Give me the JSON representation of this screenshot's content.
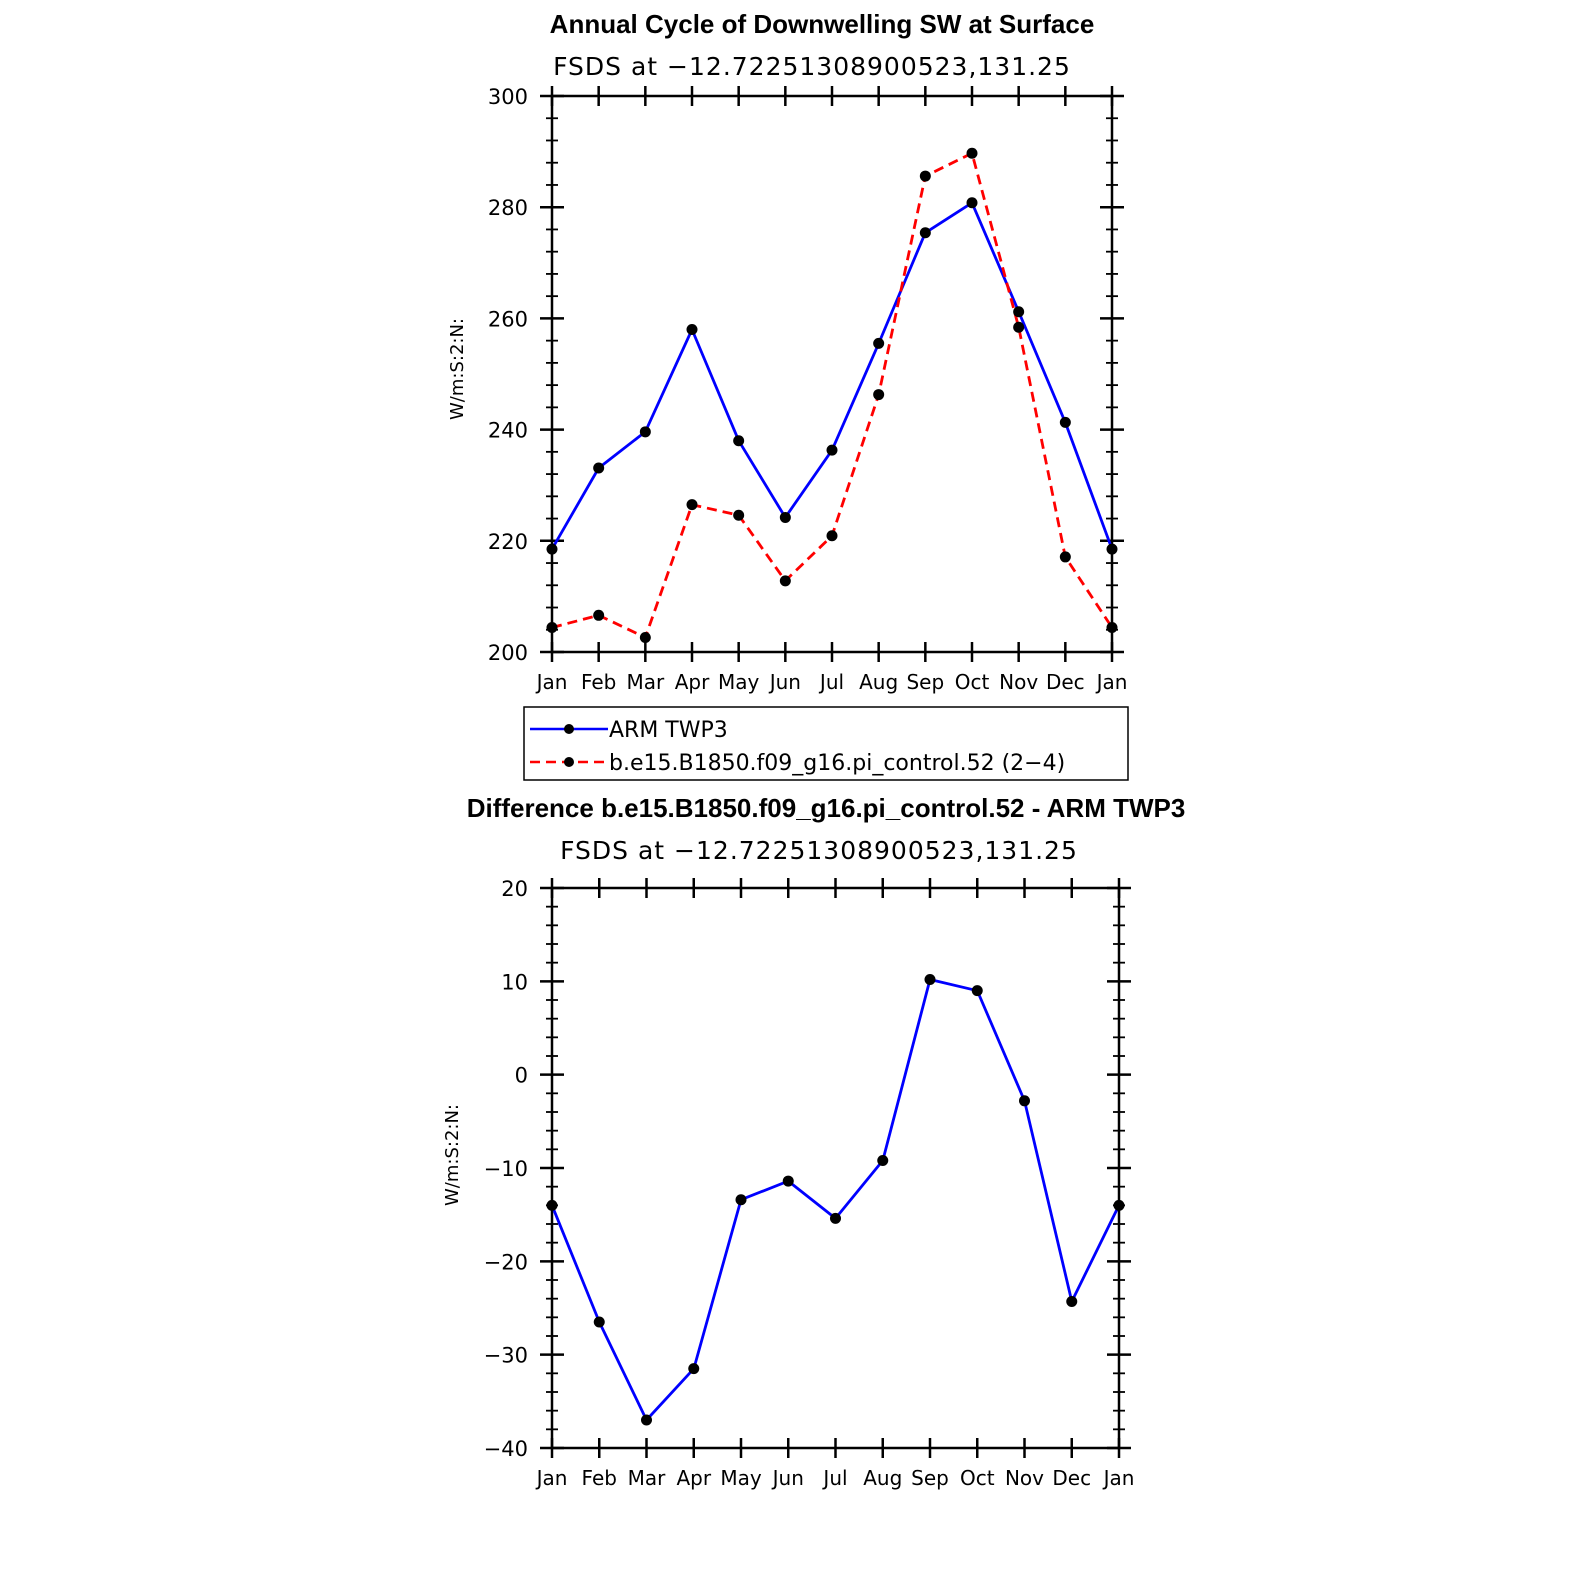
{
  "chart_data": [
    {
      "type": "line",
      "title": "Annual Cycle of Downwelling SW at Surface",
      "subtitle": "FSDS at −12.72251308900523,131.25",
      "ylabel": "W/m:S:2:N:",
      "xlabel": "",
      "ylim": [
        200,
        300
      ],
      "yticks": [
        "200",
        "220",
        "240",
        "260",
        "280",
        "300"
      ],
      "categories": [
        "Jan",
        "Feb",
        "Mar",
        "Apr",
        "May",
        "Jun",
        "Jul",
        "Aug",
        "Sep",
        "Oct",
        "Nov",
        "Dec",
        "Jan"
      ],
      "grid": false,
      "legend_position": "bottom",
      "series": [
        {
          "name": "ARM TWP3",
          "color": "#0000ff",
          "dash": "solid",
          "values": [
            218.5,
            233.1,
            239.6,
            258.0,
            238.0,
            224.2,
            236.3,
            255.5,
            275.4,
            280.8,
            261.2,
            241.3,
            218.5
          ]
        },
        {
          "name": "b.e15.B1850.f09_g16.pi_control.52 (2−4)",
          "color": "#ff0000",
          "dash": "dashed",
          "values": [
            204.4,
            206.6,
            202.6,
            226.5,
            224.6,
            212.8,
            220.9,
            246.3,
            285.6,
            289.7,
            258.4,
            217.1,
            204.4
          ]
        }
      ]
    },
    {
      "type": "line",
      "title": "Difference b.e15.B1850.f09_g16.pi_control.52 - ARM TWP3",
      "subtitle": "FSDS at −12.72251308900523,131.25",
      "ylabel": "W/m:S:2:N:",
      "xlabel": "",
      "ylim": [
        -40,
        20
      ],
      "yticks": [
        "−40",
        "−30",
        "−20",
        "−10",
        "0",
        "10",
        "20"
      ],
      "categories": [
        "Jan",
        "Feb",
        "Mar",
        "Apr",
        "May",
        "Jun",
        "Jul",
        "Aug",
        "Sep",
        "Oct",
        "Nov",
        "Dec",
        "Jan"
      ],
      "grid": false,
      "series": [
        {
          "color": "#0000ff",
          "dash": "solid",
          "values": [
            -14.0,
            -26.5,
            -37.0,
            -31.5,
            -13.4,
            -11.4,
            -15.4,
            -9.2,
            10.2,
            9.0,
            -2.8,
            -24.3,
            -14.0
          ]
        }
      ]
    }
  ]
}
